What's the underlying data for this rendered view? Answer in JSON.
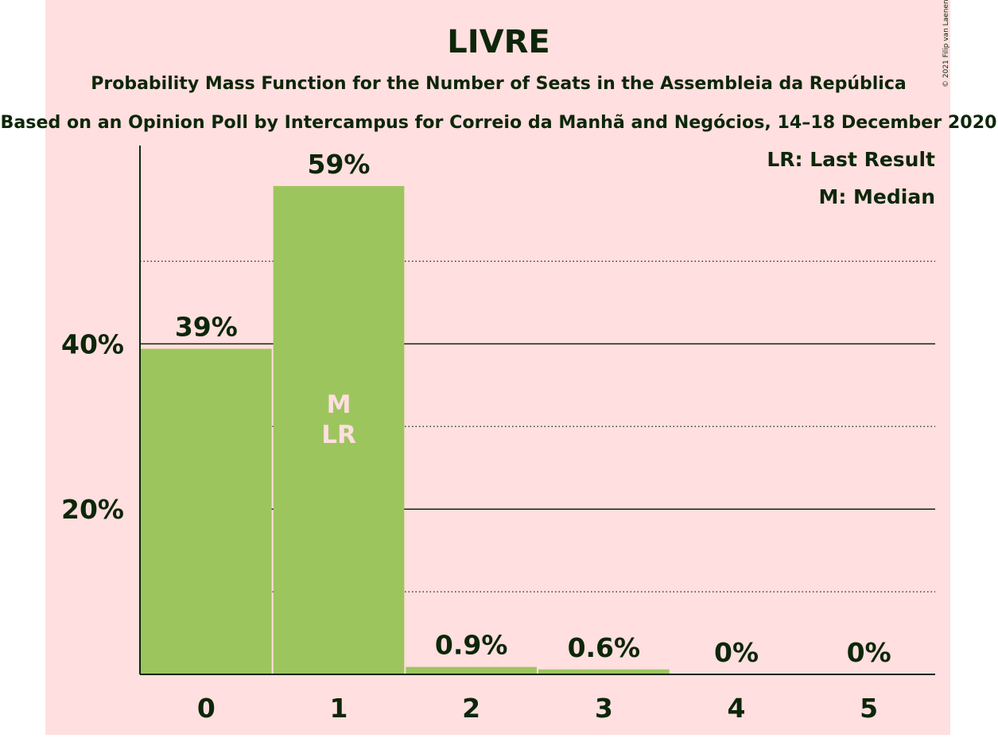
{
  "chart_data": {
    "type": "bar",
    "title": "LIVRE",
    "subtitle_1": "Probability Mass Function for the Number of Seats in the Assembleia da República",
    "subtitle_2": "Based on an Opinion Poll by Intercampus for Correio da Manhã and Negócios, 14–18 December 2020",
    "copyright": "© 2021 Filip van Laenen",
    "categories": [
      "0",
      "1",
      "2",
      "3",
      "4",
      "5"
    ],
    "values": [
      39.4,
      59.1,
      0.9,
      0.6,
      0,
      0
    ],
    "value_labels": [
      "39%",
      "59%",
      "0.9%",
      "0.6%",
      "0%",
      "0%"
    ],
    "ylim": [
      0,
      64
    ],
    "y_ticks": [
      20,
      40
    ],
    "y_tick_labels": [
      "20%",
      "40%"
    ],
    "minor_gridlines": [
      10,
      30,
      50
    ],
    "median_index": 1,
    "last_result_index": 1,
    "bar_markers": [
      "M",
      "LR"
    ],
    "legend": [
      "LR: Last Result",
      "M: Median"
    ],
    "legend_position": "top-right",
    "colors": {
      "background": "#ffffff",
      "panel": "#ffdfdf",
      "bar": "#9dc55e",
      "text": "#0d2609",
      "marker_text": "#ffdfdf",
      "grid": "#0d2609"
    }
  }
}
